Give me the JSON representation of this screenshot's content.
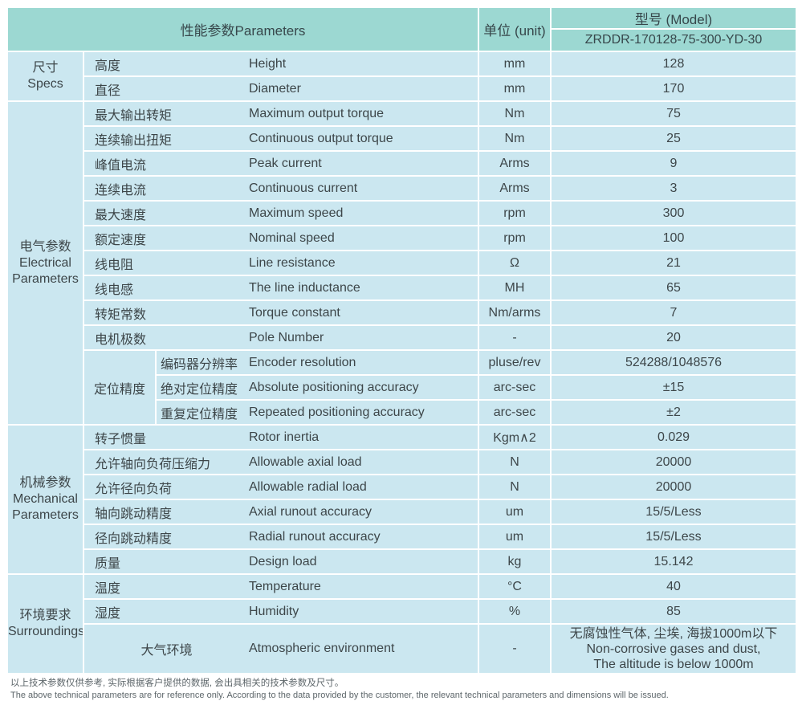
{
  "header": {
    "parameters_label": "性能参数Parameters",
    "unit_label": "单位 (unit)",
    "model_label": "型号 (Model)",
    "model_value": "ZRDDR-170128-75-300-YD-30"
  },
  "colors": {
    "header_bg": "#9cd8d2",
    "cell_bg": "#cbe7f0",
    "text": "#3d4649"
  },
  "sections": [
    {
      "group": [
        "尺寸",
        "Specs"
      ],
      "rows": [
        {
          "cn": "高度",
          "en": "Height",
          "unit": "mm",
          "value": "128"
        },
        {
          "cn": "直径",
          "en": "Diameter",
          "unit": "mm",
          "value": "170"
        }
      ]
    },
    {
      "group": [
        "电气参数",
        "Electrical",
        "Parameters"
      ],
      "rows": [
        {
          "cn": "最大输出转矩",
          "en": "Maximum output torque",
          "unit": "Nm",
          "value": "75"
        },
        {
          "cn": "连续输出扭矩",
          "en": "Continuous output torque",
          "unit": "Nm",
          "value": "25"
        },
        {
          "cn": "峰值电流",
          "en": "Peak current",
          "unit": "Arms",
          "value": "9"
        },
        {
          "cn": "连续电流",
          "en": "Continuous current",
          "unit": "Arms",
          "value": "3"
        },
        {
          "cn": "最大速度",
          "en": "Maximum speed",
          "unit": "rpm",
          "value": "300"
        },
        {
          "cn": "额定速度",
          "en": "Nominal speed",
          "unit": "rpm",
          "value": "100"
        },
        {
          "cn": "线电阻",
          "en": "Line resistance",
          "unit": "Ω",
          "value": "21"
        },
        {
          "cn": "线电感",
          "en": "The line inductance",
          "unit": "MH",
          "value": "65"
        },
        {
          "cn": "转矩常数",
          "en": "Torque constant",
          "unit": "Nm/arms",
          "value": "7"
        },
        {
          "cn": "电机极数",
          "en": "Pole Number",
          "unit": "-",
          "value": "20"
        },
        {
          "cn": "编码器分辨率",
          "en": "Encoder resolution",
          "unit": "pluse/rev",
          "value": "524288/1048576",
          "nested": true,
          "subgroup": "定位精度",
          "subgroup_rowspan": 3
        },
        {
          "cn": "绝对定位精度",
          "en": "Absolute positioning accuracy",
          "unit": "arc-sec",
          "value": "±15",
          "nested": true
        },
        {
          "cn": "重复定位精度",
          "en": "Repeated positioning accuracy",
          "unit": "arc-sec",
          "value": "±2",
          "nested": true
        }
      ]
    },
    {
      "group": [
        "机械参数",
        "Mechanical",
        "Parameters"
      ],
      "rows": [
        {
          "cn": "转子惯量",
          "en": "Rotor inertia",
          "unit": "Kgm∧2",
          "value": "0.029"
        },
        {
          "cn": "允许轴向负荷压缩力",
          "en": "Allowable axial load",
          "unit": "N",
          "value": "20000"
        },
        {
          "cn": "允许径向负荷",
          "en": "Allowable radial load",
          "unit": "N",
          "value": "20000"
        },
        {
          "cn": "轴向跳动精度",
          "en": "Axial runout accuracy",
          "unit": "um",
          "value": "15/5/Less"
        },
        {
          "cn": "径向跳动精度",
          "en": "Radial runout accuracy",
          "unit": "um",
          "value": "15/5/Less"
        },
        {
          "cn": "质量",
          "en": "Design load",
          "unit": "kg",
          "value": "15.142"
        }
      ]
    },
    {
      "group": [
        "环境要求",
        "Surroundings"
      ],
      "rows": [
        {
          "cn": "温度",
          "en": "Temperature",
          "unit": "°C",
          "value": "40"
        },
        {
          "cn": "湿度",
          "en": "Humidity",
          "unit": "%",
          "value": "85"
        },
        {
          "cn": "大气环境",
          "en": "Atmospheric environment",
          "unit": "-",
          "value": [
            "无腐蚀性气体, 尘埃, 海拔1000m以下",
            "Non-corrosive gases and dust,",
            "The altitude is below 1000m"
          ],
          "center_cn": true,
          "tall": true
        }
      ]
    }
  ],
  "footer": {
    "line_cn": "以上技术参数仅供参考, 实际根据客户提供的数据, 会出具相关的技术参数及尺寸。",
    "line_en": "The above technical parameters are for reference only. According to the data provided by the customer, the relevant technical parameters and dimensions will be issued."
  }
}
